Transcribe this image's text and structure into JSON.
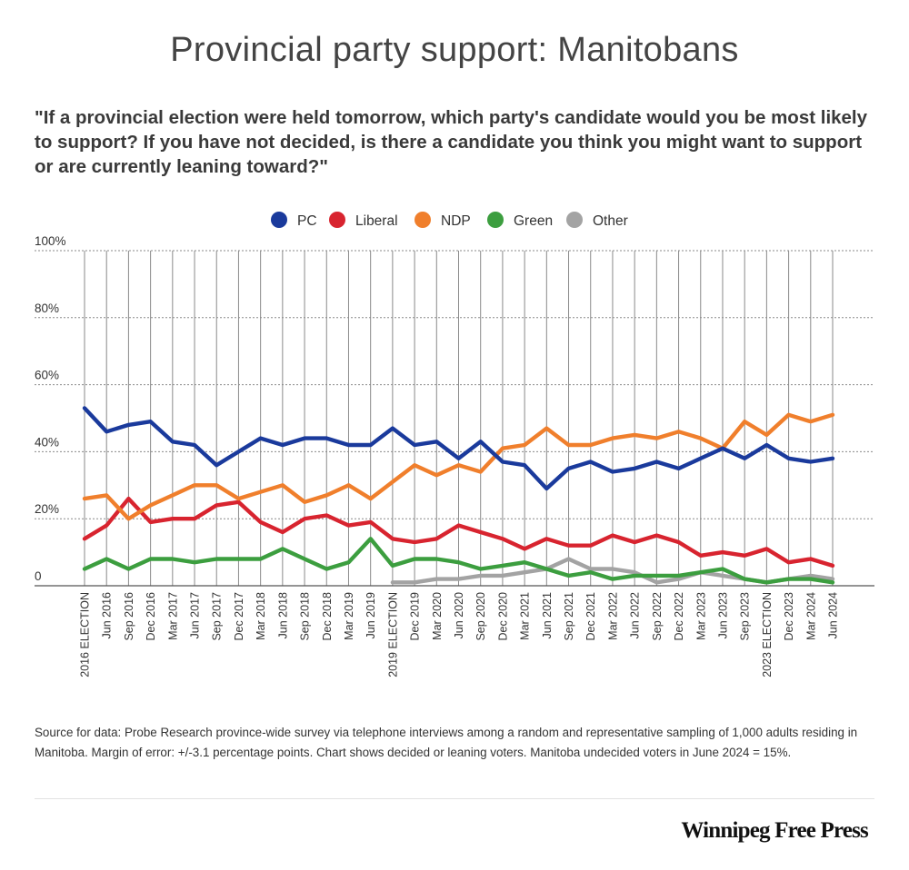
{
  "chart_data": {
    "type": "line",
    "title": "Provincial party support: Manitobans",
    "subtitle": "\"If a provincial election were held tomorrow, which party's candidate would you be most likely to support? If you have not decided, is there a candidate you think you might want to support or are currently leaning toward?\"",
    "categories": [
      "2016 ELECTION",
      "Jun 2016",
      "Sep 2016",
      "Dec 2016",
      "Mar 2017",
      "Jun 2017",
      "Sep 2017",
      "Dec 2017",
      "Mar 2018",
      "Jun 2018",
      "Sep 2018",
      "Dec 2018",
      "Mar 2019",
      "Jun 2019",
      "2019 ELECTION",
      "Dec 2019",
      "Mar 2020",
      "Jun 2020",
      "Sep 2020",
      "Dec 2020",
      "Mar 2021",
      "Jun 2021",
      "Sep 2021",
      "Dec 2021",
      "Mar 2022",
      "Jun 2022",
      "Sep 2022",
      "Dec 2022",
      "Mar 2023",
      "Jun 2023",
      "Sep 2023",
      "2023 ELECTION",
      "Dec 2023",
      "Mar 2024",
      "Jun 2024"
    ],
    "ylim": [
      0,
      100
    ],
    "yticks": [
      0,
      20,
      40,
      60,
      80,
      100
    ],
    "ytick_labels": [
      "0",
      "20%",
      "40%",
      "60%",
      "80%",
      "100%"
    ],
    "legend_position": "top-center",
    "series": [
      {
        "name": "PC",
        "color": "#1a3a9c",
        "values": [
          53,
          46,
          48,
          49,
          43,
          42,
          36,
          40,
          44,
          42,
          44,
          44,
          42,
          42,
          47,
          42,
          43,
          38,
          43,
          37,
          36,
          29,
          35,
          37,
          34,
          35,
          37,
          35,
          38,
          41,
          38,
          42,
          38,
          37,
          38
        ]
      },
      {
        "name": "Liberal",
        "color": "#d8242f",
        "values": [
          14,
          18,
          26,
          19,
          20,
          20,
          24,
          25,
          19,
          16,
          20,
          21,
          18,
          19,
          14,
          13,
          14,
          18,
          16,
          14,
          11,
          14,
          12,
          12,
          15,
          13,
          15,
          13,
          9,
          10,
          9,
          11,
          7,
          8,
          6
        ]
      },
      {
        "name": "NDP",
        "color": "#f07f2c",
        "values": [
          26,
          27,
          20,
          24,
          27,
          30,
          30,
          26,
          28,
          30,
          25,
          27,
          30,
          26,
          31,
          36,
          33,
          36,
          34,
          41,
          42,
          47,
          42,
          42,
          44,
          45,
          44,
          46,
          44,
          41,
          49,
          45,
          51,
          49,
          51
        ]
      },
      {
        "name": "Green",
        "color": "#3c9e3f",
        "values": [
          5,
          8,
          5,
          8,
          8,
          7,
          8,
          8,
          8,
          11,
          8,
          5,
          7,
          14,
          6,
          8,
          8,
          7,
          5,
          6,
          7,
          5,
          3,
          4,
          2,
          3,
          3,
          3,
          4,
          5,
          2,
          1,
          2,
          2,
          1
        ]
      },
      {
        "name": "Other",
        "color": "#a3a3a3",
        "values": [
          null,
          null,
          null,
          null,
          null,
          null,
          null,
          null,
          null,
          null,
          null,
          null,
          null,
          null,
          1,
          1,
          2,
          2,
          3,
          3,
          4,
          5,
          8,
          5,
          5,
          4,
          1,
          2,
          4,
          3,
          2,
          1,
          2,
          3,
          2
        ]
      }
    ]
  },
  "footer": {
    "source": "Source for data:  Probe Research province-wide survey via telephone interviews among a random and representative sampling of 1,000 adults residing in Manitoba.  Margin of error: +/-3.1 percentage points. Chart shows decided or leaning voters. Manitoba undecided voters in June 2024 = 15%.",
    "brand": "Winnipeg Free Press"
  }
}
